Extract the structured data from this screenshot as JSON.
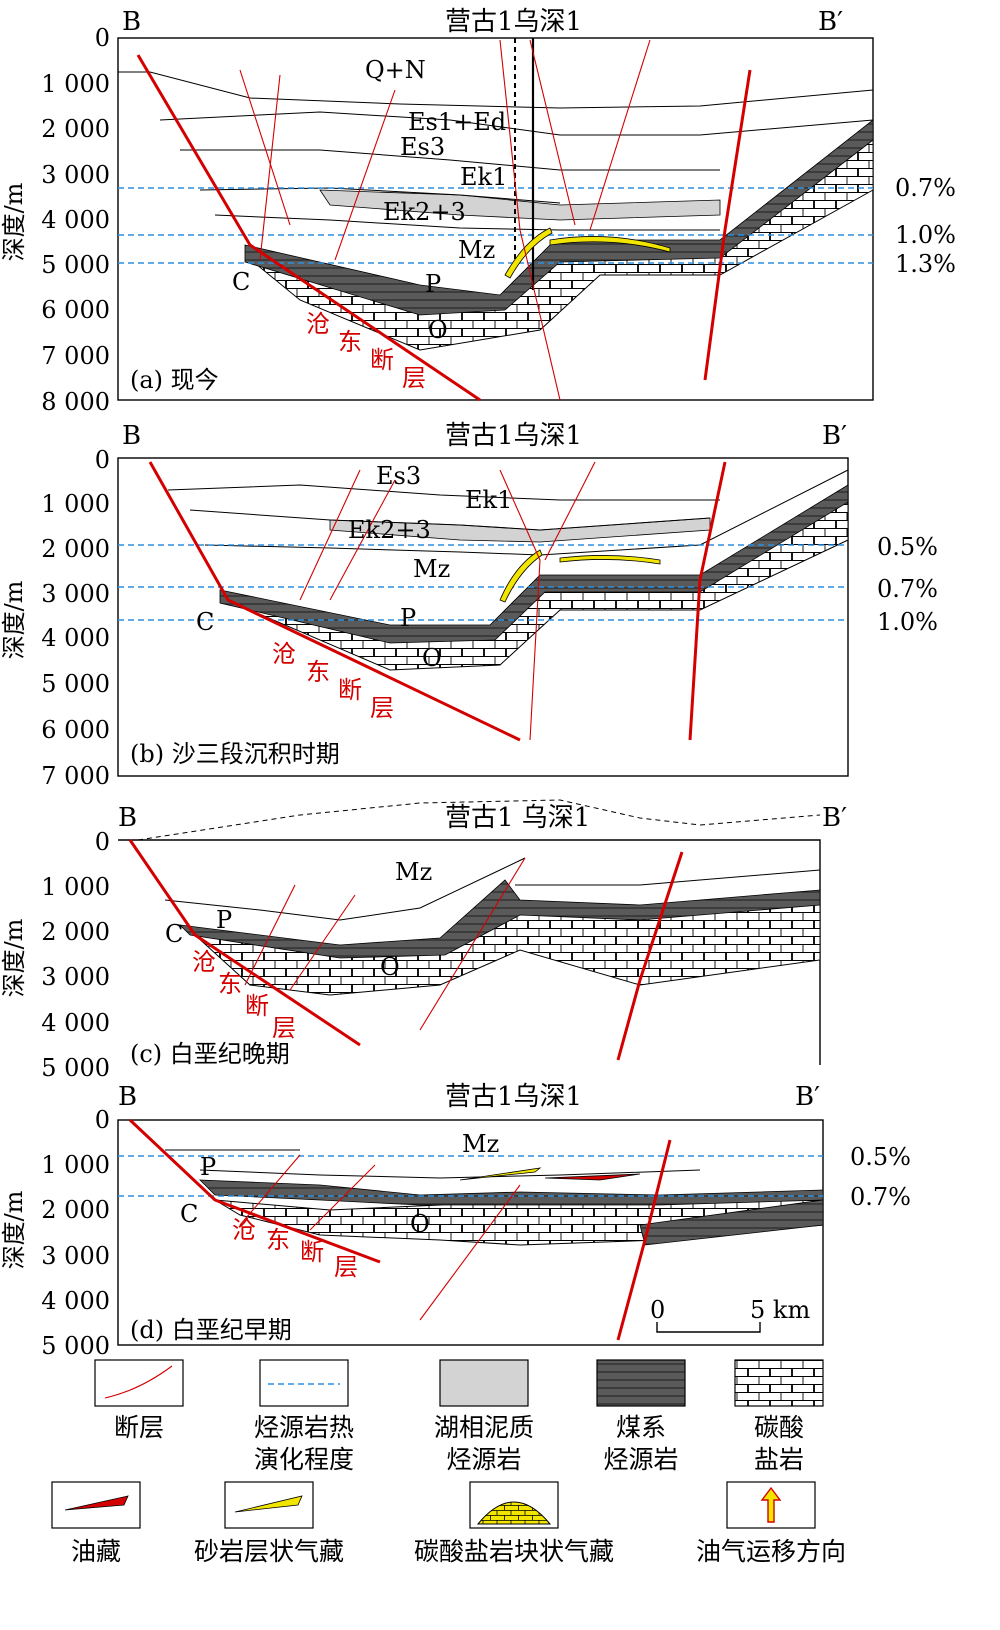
{
  "depth_axis_label": "深度/m",
  "section_start": "B",
  "section_end": "B′",
  "panels": [
    {
      "caption": "(a) 现今",
      "wells": "营古1乌深1",
      "ticks": [
        "0",
        "1 000",
        "2 000",
        "3 000",
        "4 000",
        "5 000",
        "6 000",
        "7 000",
        "8 000"
      ],
      "units": [
        "Q+N",
        "Es1+Ed",
        "Es3",
        "Ek1",
        "Ek2+3",
        "Mz",
        "C",
        "P",
        "O"
      ],
      "fault_name": [
        "沧",
        "东",
        "断",
        "层"
      ],
      "ro": [
        "0.7%",
        "1.0%",
        "1.3%"
      ]
    },
    {
      "caption": "(b) 沙三段沉积时期",
      "wells": "营古1乌深1",
      "ticks": [
        "0",
        "1 000",
        "2 000",
        "3 000",
        "4 000",
        "5 000",
        "6 000",
        "7 000"
      ],
      "units": [
        "Es3",
        "Ek1",
        "Ek2+3",
        "Mz",
        "C",
        "P",
        "O"
      ],
      "fault_name": [
        "沧",
        "东",
        "断",
        "层"
      ],
      "ro": [
        "0.5%",
        "0.7%",
        "1.0%"
      ]
    },
    {
      "caption": "(c) 白垩纪晚期",
      "wells": "营古1 乌深1",
      "ticks": [
        "0",
        "1 000",
        "2 000",
        "3 000",
        "4 000",
        "5 000"
      ],
      "units": [
        "Mz",
        "C",
        "P",
        "O"
      ],
      "fault_name": [
        "沧",
        "东",
        "断",
        "层"
      ],
      "ro": []
    },
    {
      "caption": "(d) 白垩纪早期",
      "wells": "营古1乌深1",
      "ticks": [
        "0",
        "1 000",
        "2 000",
        "3 000",
        "4 000",
        "5 000"
      ],
      "units": [
        "Mz",
        "P",
        "C",
        "O"
      ],
      "fault_name": [
        "沧",
        "东",
        "断",
        "层"
      ],
      "ro": [
        "0.5%",
        "0.7%"
      ]
    }
  ],
  "scale_bar": {
    "start": "0",
    "end": "5 km"
  },
  "legend": {
    "row1": [
      "断层",
      "烃源岩热演化程度",
      "湖相泥质烃源岩",
      "煤系烃源岩",
      "碳酸盐岩"
    ],
    "row1_lines": [
      [
        "断层"
      ],
      [
        "烃源岩热",
        "演化程度"
      ],
      [
        "湖相泥质",
        "烃源岩"
      ],
      [
        "煤系",
        "烃源岩"
      ],
      [
        "碳酸",
        "盐岩"
      ]
    ],
    "row2": [
      "油藏",
      "砂岩层状气藏",
      "碳酸盐岩块状气藏",
      "油气运移方向"
    ]
  },
  "colors": {
    "fault": "#d40000",
    "iso_line": "#2b8fe0",
    "lacustrine_source": "#d3d3d3",
    "coal_source": "#555555",
    "gas_sand": "#f2e600",
    "oil": "#d40000"
  }
}
